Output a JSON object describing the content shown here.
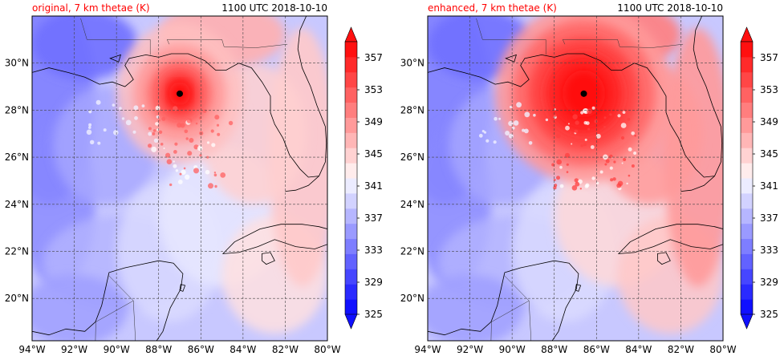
{
  "panels": [
    {
      "id": "original",
      "title_left": "original, 7 km thetae (K)",
      "title_right": "1100 UTC 2018-10-10",
      "storm_center": {
        "lon": -87.0,
        "lat": 28.7
      },
      "intensity": "original"
    },
    {
      "id": "enhanced",
      "title_left": "enhanced, 7 km thetae (K)",
      "title_right": "1100 UTC 2018-10-10",
      "storm_center": {
        "lon": -86.6,
        "lat": 28.7
      },
      "intensity": "enhanced"
    }
  ],
  "map": {
    "lon_range": [
      -94,
      -80
    ],
    "lat_range": [
      18.2,
      32
    ],
    "lon_ticks": [
      -94,
      -92,
      -90,
      -88,
      -86,
      -84,
      -82,
      -80
    ],
    "lon_tick_labels": [
      "94°W",
      "92°W",
      "90°W",
      "88°W",
      "86°W",
      "84°W",
      "82°W",
      "80°W"
    ],
    "lat_ticks": [
      20,
      22,
      24,
      26,
      28,
      30
    ],
    "lat_tick_labels": [
      "20°N",
      "22°N",
      "24°N",
      "26°N",
      "28°N",
      "30°N"
    ],
    "grid": "dashed"
  },
  "colorbar": {
    "min": 325,
    "max": 359,
    "step": 2,
    "tick_values": [
      325,
      329,
      333,
      337,
      341,
      345,
      349,
      353,
      357
    ],
    "tick_labels": [
      "325",
      "329",
      "333",
      "337",
      "341",
      "345",
      "349",
      "353",
      "357"
    ],
    "extend": "both",
    "colormap": "bwr",
    "colors": [
      "#1010ff",
      "#2a2aff",
      "#4646ff",
      "#6262ff",
      "#7e7eff",
      "#9a9aff",
      "#b6b6ff",
      "#d2d2ff",
      "#ececff",
      "#ffecec",
      "#ffd2d2",
      "#ffb6b6",
      "#ff9a9a",
      "#ff7e7e",
      "#ff6262",
      "#ff4646",
      "#ff2a2a",
      "#ff1010"
    ]
  },
  "colors": {
    "title_left": "#ff0000",
    "coastline": "#000000",
    "grid": "#444444",
    "storm_dot": "#000000"
  }
}
